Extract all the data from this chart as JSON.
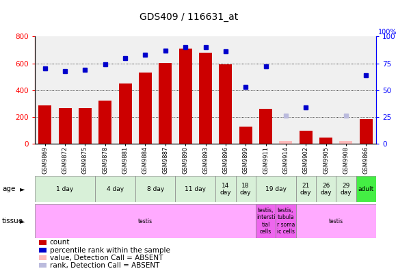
{
  "title": "GDS409 / 116631_at",
  "samples": [
    "GSM9869",
    "GSM9872",
    "GSM9875",
    "GSM9878",
    "GSM9881",
    "GSM9884",
    "GSM9887",
    "GSM9890",
    "GSM9893",
    "GSM9896",
    "GSM9899",
    "GSM9911",
    "GSM9914",
    "GSM9902",
    "GSM9905",
    "GSM9908",
    "GSM9866"
  ],
  "bar_values": [
    285,
    265,
    265,
    320,
    450,
    530,
    605,
    710,
    680,
    595,
    125,
    260,
    20,
    95,
    45,
    20,
    185
  ],
  "bar_absent": [
    false,
    false,
    false,
    false,
    false,
    false,
    false,
    false,
    false,
    false,
    false,
    false,
    true,
    false,
    false,
    true,
    false
  ],
  "dot_values": [
    70,
    68,
    69,
    74,
    80,
    83,
    87,
    90,
    90,
    86,
    53,
    72,
    26,
    34,
    null,
    26,
    64
  ],
  "dot_absent": [
    false,
    false,
    false,
    false,
    false,
    false,
    false,
    false,
    false,
    false,
    false,
    false,
    true,
    false,
    true,
    true,
    false
  ],
  "ylim_left": [
    0,
    800
  ],
  "ylim_right": [
    0,
    100
  ],
  "yticks_left": [
    0,
    200,
    400,
    600,
    800
  ],
  "yticks_right": [
    0,
    25,
    50,
    75,
    100
  ],
  "bar_color": "#cc0000",
  "bar_absent_color": "#ffbbbb",
  "dot_color": "#0000cc",
  "dot_absent_color": "#bbbbdd",
  "bg_color": "#ffffff",
  "plot_bg": "#f0f0f0",
  "age_groups": [
    {
      "label": "1 day",
      "start": 0,
      "end": 3,
      "color": "#d8f0d8"
    },
    {
      "label": "4 day",
      "start": 3,
      "end": 5,
      "color": "#d8f0d8"
    },
    {
      "label": "8 day",
      "start": 5,
      "end": 7,
      "color": "#d8f0d8"
    },
    {
      "label": "11 day",
      "start": 7,
      "end": 9,
      "color": "#d8f0d8"
    },
    {
      "label": "14\nday",
      "start": 9,
      "end": 10,
      "color": "#d8f0d8"
    },
    {
      "label": "18\nday",
      "start": 10,
      "end": 11,
      "color": "#d8f0d8"
    },
    {
      "label": "19 day",
      "start": 11,
      "end": 13,
      "color": "#d8f0d8"
    },
    {
      "label": "21\nday",
      "start": 13,
      "end": 14,
      "color": "#d8f0d8"
    },
    {
      "label": "26\nday",
      "start": 14,
      "end": 15,
      "color": "#d8f0d8"
    },
    {
      "label": "29\nday",
      "start": 15,
      "end": 16,
      "color": "#d8f0d8"
    },
    {
      "label": "adult",
      "start": 16,
      "end": 17,
      "color": "#44ee44"
    }
  ],
  "tissue_groups": [
    {
      "label": "testis",
      "start": 0,
      "end": 11,
      "color": "#ffaaff"
    },
    {
      "label": "testis,\nintersti\ntial\ncells",
      "start": 11,
      "end": 12,
      "color": "#ee66ee"
    },
    {
      "label": "testis,\ntubula\nr soma\nic cells",
      "start": 12,
      "end": 13,
      "color": "#ee66ee"
    },
    {
      "label": "testis",
      "start": 13,
      "end": 17,
      "color": "#ffaaff"
    }
  ],
  "legend_items": [
    {
      "label": "count",
      "color": "#cc0000"
    },
    {
      "label": "percentile rank within the sample",
      "color": "#0000cc"
    },
    {
      "label": "value, Detection Call = ABSENT",
      "color": "#ffbbbb"
    },
    {
      "label": "rank, Detection Call = ABSENT",
      "color": "#bbbbdd"
    }
  ]
}
